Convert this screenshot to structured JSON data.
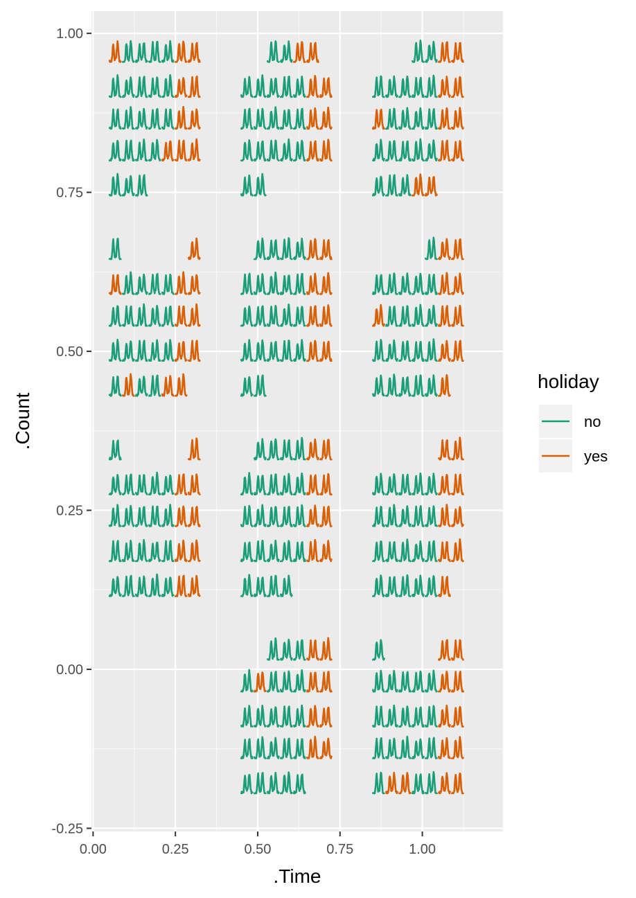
{
  "chart_data": {
    "type": "line",
    "title": "",
    "xlabel": ".Time",
    "ylabel": ".Count",
    "xlim": [
      -0.005,
      1.245
    ],
    "ylim": [
      -0.255,
      1.035
    ],
    "x_ticks": [
      0.0,
      0.25,
      0.5,
      0.75,
      1.0
    ],
    "x_tick_labels": [
      "0.00",
      "0.25",
      "0.50",
      "0.75",
      "1.00"
    ],
    "y_ticks": [
      -0.25,
      0.0,
      0.25,
      0.5,
      0.75,
      1.0
    ],
    "y_tick_labels": [
      "-0.25",
      "0.00",
      "0.25",
      "0.50",
      "0.75",
      "1.00"
    ],
    "grid": true,
    "legend": {
      "title": "holiday",
      "position": "right",
      "entries": [
        {
          "label": "no",
          "color": "#1b9e77"
        },
        {
          "label": "yes",
          "color": "#d95f02"
        }
      ]
    },
    "calendar": {
      "description": "calendar-style layout; each cell is one day of a daily double-peak profile",
      "columns": [
        {
          "start": 0.05,
          "step": 0.04,
          "cells": 7
        },
        {
          "start": 0.45,
          "step": 0.04,
          "cells": 7
        },
        {
          "start": 0.85,
          "step": 0.04,
          "cells": 7
        }
      ],
      "cell_width": 0.034,
      "blocks": [
        {
          "rows": [
            {
              "base": 0.955,
              "amp": 0.032,
              "cols": [
                [
                  "yes",
                  "no",
                  "no",
                  "no",
                  "no",
                  "yes",
                  "yes"
                ],
                [
                  "",
                  "",
                  "no",
                  "no",
                  "yes",
                  "yes",
                  ""
                ],
                [
                  "",
                  "",
                  "",
                  "no",
                  "no",
                  "yes",
                  "yes"
                ]
              ]
            },
            {
              "base": 0.9,
              "amp": 0.032,
              "cols": [
                [
                  "no",
                  "no",
                  "no",
                  "no",
                  "no",
                  "yes",
                  "yes"
                ],
                [
                  "no",
                  "no",
                  "no",
                  "no",
                  "no",
                  "yes",
                  "yes"
                ],
                [
                  "no",
                  "no",
                  "no",
                  "no",
                  "no",
                  "yes",
                  "yes"
                ]
              ]
            },
            {
              "base": 0.85,
              "amp": 0.032,
              "cols": [
                [
                  "no",
                  "no",
                  "no",
                  "no",
                  "no",
                  "yes",
                  "yes"
                ],
                [
                  "no",
                  "no",
                  "no",
                  "no",
                  "no",
                  "yes",
                  "yes"
                ],
                [
                  "yes",
                  "no",
                  "no",
                  "no",
                  "no",
                  "yes",
                  "yes"
                ]
              ]
            },
            {
              "base": 0.8,
              "amp": 0.032,
              "cols": [
                [
                  "no",
                  "no",
                  "no",
                  "no",
                  "yes",
                  "yes",
                  "yes"
                ],
                [
                  "no",
                  "no",
                  "no",
                  "no",
                  "no",
                  "yes",
                  "yes"
                ],
                [
                  "no",
                  "no",
                  "no",
                  "no",
                  "no",
                  "yes",
                  "yes"
                ]
              ]
            },
            {
              "base": 0.745,
              "amp": 0.032,
              "cols": [
                [
                  "no",
                  "no",
                  "no",
                  "",
                  "",
                  "",
                  ""
                ],
                [
                  "no",
                  "no",
                  "",
                  "",
                  "",
                  "",
                  ""
                ],
                [
                  "no",
                  "no",
                  "no",
                  "yes",
                  "yes",
                  "",
                  ""
                ]
              ]
            }
          ]
        },
        {
          "rows": [
            {
              "base": 0.645,
              "amp": 0.032,
              "cols": [
                [
                  "no",
                  "",
                  "",
                  "",
                  "",
                  "",
                  "yes"
                ],
                [
                  "",
                  "no",
                  "no",
                  "no",
                  "no",
                  "yes",
                  "yes"
                ],
                [
                  "",
                  "",
                  "",
                  "",
                  "no",
                  "yes",
                  "yes"
                ]
              ]
            },
            {
              "base": 0.59,
              "amp": 0.032,
              "cols": [
                [
                  "yes",
                  "no",
                  "no",
                  "no",
                  "no",
                  "yes",
                  "yes"
                ],
                [
                  "no",
                  "no",
                  "no",
                  "no",
                  "no",
                  "yes",
                  "yes"
                ],
                [
                  "no",
                  "no",
                  "no",
                  "no",
                  "no",
                  "yes",
                  "yes"
                ]
              ]
            },
            {
              "base": 0.54,
              "amp": 0.032,
              "cols": [
                [
                  "no",
                  "no",
                  "no",
                  "no",
                  "no",
                  "yes",
                  "yes"
                ],
                [
                  "no",
                  "no",
                  "no",
                  "no",
                  "no",
                  "yes",
                  "yes"
                ],
                [
                  "yes",
                  "no",
                  "no",
                  "no",
                  "no",
                  "yes",
                  "yes"
                ]
              ]
            },
            {
              "base": 0.485,
              "amp": 0.032,
              "cols": [
                [
                  "no",
                  "no",
                  "no",
                  "no",
                  "no",
                  "yes",
                  "yes"
                ],
                [
                  "no",
                  "no",
                  "no",
                  "no",
                  "no",
                  "yes",
                  "yes"
                ],
                [
                  "no",
                  "no",
                  "no",
                  "no",
                  "no",
                  "yes",
                  "yes"
                ]
              ]
            },
            {
              "base": 0.43,
              "amp": 0.032,
              "cols": [
                [
                  "no",
                  "yes",
                  "no",
                  "no",
                  "yes",
                  "yes",
                  ""
                ],
                [
                  "no",
                  "no",
                  "",
                  "",
                  "",
                  "",
                  ""
                ],
                [
                  "no",
                  "no",
                  "no",
                  "no",
                  "no",
                  "yes",
                  ""
                ]
              ]
            }
          ]
        },
        {
          "rows": [
            {
              "base": 0.33,
              "amp": 0.032,
              "cols": [
                [
                  "no",
                  "",
                  "",
                  "",
                  "",
                  "",
                  "yes"
                ],
                [
                  "",
                  "no",
                  "no",
                  "no",
                  "no",
                  "yes",
                  "yes"
                ],
                [
                  "",
                  "",
                  "",
                  "",
                  "",
                  "yes",
                  "yes"
                ]
              ]
            },
            {
              "base": 0.275,
              "amp": 0.032,
              "cols": [
                [
                  "no",
                  "no",
                  "no",
                  "no",
                  "no",
                  "yes",
                  "yes"
                ],
                [
                  "no",
                  "no",
                  "no",
                  "no",
                  "no",
                  "yes",
                  "yes"
                ],
                [
                  "no",
                  "no",
                  "no",
                  "no",
                  "no",
                  "yes",
                  "yes"
                ]
              ]
            },
            {
              "base": 0.225,
              "amp": 0.032,
              "cols": [
                [
                  "no",
                  "no",
                  "no",
                  "no",
                  "no",
                  "yes",
                  "yes"
                ],
                [
                  "no",
                  "no",
                  "no",
                  "no",
                  "no",
                  "yes",
                  "yes"
                ],
                [
                  "no",
                  "no",
                  "no",
                  "no",
                  "no",
                  "yes",
                  "yes"
                ]
              ]
            },
            {
              "base": 0.17,
              "amp": 0.032,
              "cols": [
                [
                  "no",
                  "no",
                  "no",
                  "no",
                  "no",
                  "yes",
                  "yes"
                ],
                [
                  "no",
                  "no",
                  "no",
                  "no",
                  "no",
                  "yes",
                  "yes"
                ],
                [
                  "no",
                  "no",
                  "no",
                  "no",
                  "no",
                  "yes",
                  "yes"
                ]
              ]
            },
            {
              "base": 0.115,
              "amp": 0.032,
              "cols": [
                [
                  "no",
                  "no",
                  "no",
                  "no",
                  "no",
                  "yes",
                  "yes"
                ],
                [
                  "no",
                  "no",
                  "no",
                  "no",
                  "",
                  "",
                  ""
                ],
                [
                  "no",
                  "no",
                  "no",
                  "no",
                  "no",
                  "yes",
                  ""
                ]
              ]
            }
          ]
        },
        {
          "rows": [
            {
              "base": 0.015,
              "amp": 0.032,
              "cols": [
                [
                  "",
                  "",
                  "",
                  "",
                  "",
                  "",
                  ""
                ],
                [
                  "",
                  "",
                  "no",
                  "no",
                  "no",
                  "yes",
                  "yes"
                ],
                [
                  "no",
                  "",
                  "",
                  "",
                  "",
                  "yes",
                  "yes"
                ]
              ]
            },
            {
              "base": -0.035,
              "amp": 0.032,
              "cols": [
                [
                  "",
                  "",
                  "",
                  "",
                  "",
                  "",
                  ""
                ],
                [
                  "no",
                  "yes",
                  "no",
                  "no",
                  "no",
                  "yes",
                  "yes"
                ],
                [
                  "no",
                  "no",
                  "no",
                  "no",
                  "no",
                  "yes",
                  "yes"
                ]
              ]
            },
            {
              "base": -0.09,
              "amp": 0.032,
              "cols": [
                [
                  "",
                  "",
                  "",
                  "",
                  "",
                  "",
                  ""
                ],
                [
                  "no",
                  "no",
                  "no",
                  "no",
                  "no",
                  "yes",
                  "yes"
                ],
                [
                  "no",
                  "no",
                  "no",
                  "no",
                  "no",
                  "yes",
                  "yes"
                ]
              ]
            },
            {
              "base": -0.14,
              "amp": 0.032,
              "cols": [
                [
                  "",
                  "",
                  "",
                  "",
                  "",
                  "",
                  ""
                ],
                [
                  "no",
                  "no",
                  "no",
                  "no",
                  "no",
                  "yes",
                  "yes"
                ],
                [
                  "no",
                  "no",
                  "no",
                  "no",
                  "no",
                  "yes",
                  "yes"
                ]
              ]
            },
            {
              "base": -0.195,
              "amp": 0.032,
              "cols": [
                [
                  "",
                  "",
                  "",
                  "",
                  "",
                  "",
                  ""
                ],
                [
                  "no",
                  "no",
                  "no",
                  "no",
                  "no",
                  "",
                  ""
                ],
                [
                  "no",
                  "yes",
                  "yes",
                  "no",
                  "no",
                  "yes",
                  "yes"
                ]
              ]
            }
          ]
        }
      ]
    }
  }
}
